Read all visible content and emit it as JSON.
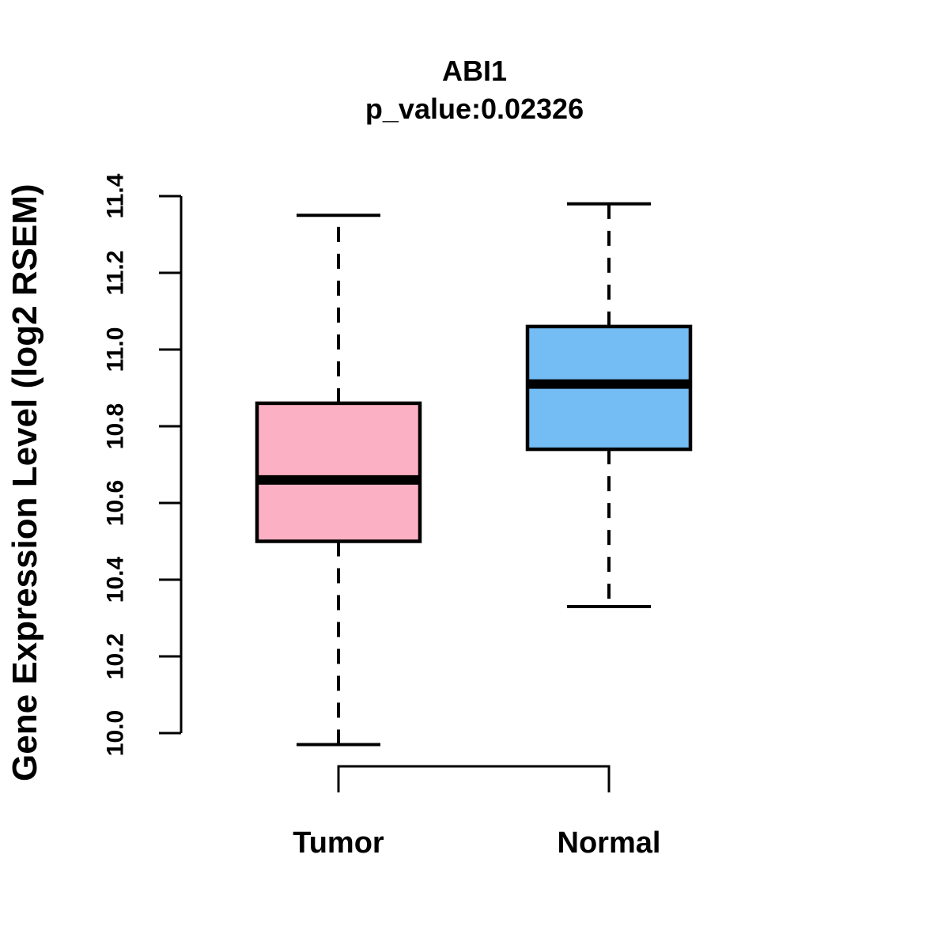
{
  "figure": {
    "title": "ABI1",
    "subtitle": "p_value:0.02326",
    "ylabel": "Gene Expression Level (log2 RSEM)"
  },
  "chart_data": {
    "type": "boxplot",
    "title": "ABI1",
    "subtitle": "p_value:0.02326",
    "xlabel": "",
    "ylabel": "Gene Expression Level (log2 RSEM)",
    "ylim": [
      10.0,
      11.4
    ],
    "yticks": [
      10.0,
      10.2,
      10.4,
      10.6,
      10.8,
      11.0,
      11.2,
      11.4
    ],
    "ytick_labels": [
      "10.0",
      "10.2",
      "10.4",
      "10.6",
      "10.8",
      "11.0",
      "11.2",
      "11.4"
    ],
    "grid": false,
    "legend": "none",
    "categories": [
      "Tumor",
      "Normal"
    ],
    "series": [
      {
        "name": "Tumor",
        "whisker_low": 9.97,
        "q1": 10.5,
        "median": 10.66,
        "q3": 10.86,
        "whisker_high": 11.35,
        "fill_color": "#FCB0C3"
      },
      {
        "name": "Normal",
        "whisker_low": 10.33,
        "q1": 10.74,
        "median": 10.91,
        "q3": 11.06,
        "whisker_high": 11.38,
        "fill_color": "#73BCF4"
      }
    ],
    "colors": {
      "box_border": "#000000",
      "axis": "#000000",
      "text": "#000000",
      "background": "#FFFFFF"
    }
  }
}
